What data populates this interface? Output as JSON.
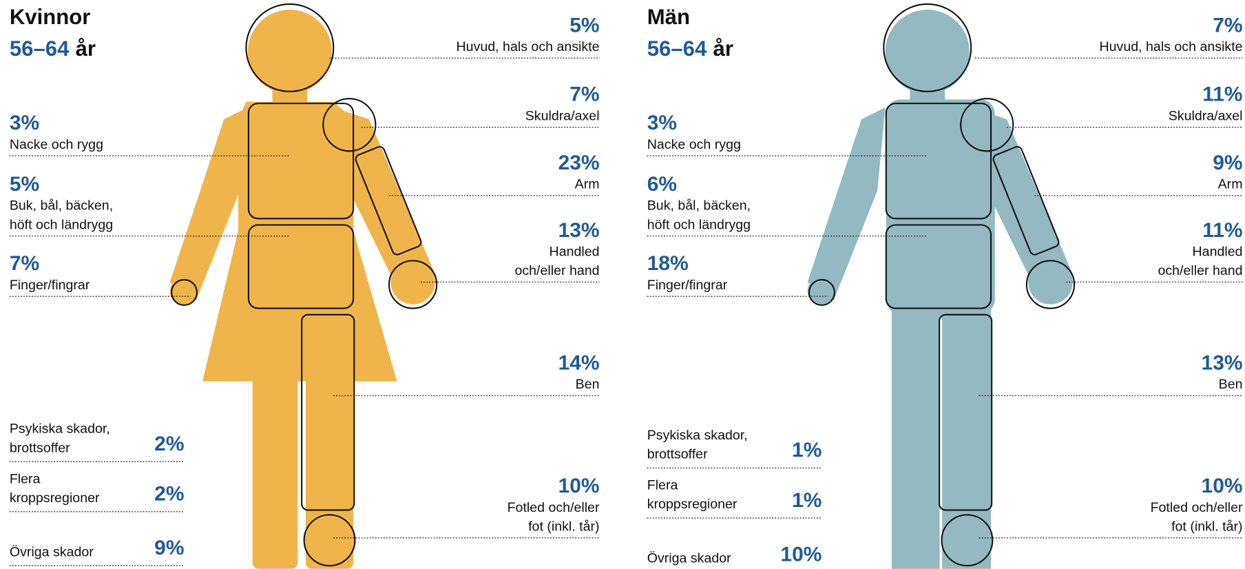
{
  "panels": [
    {
      "title": "Kvinnor",
      "age": "56–64",
      "age_unit": "år",
      "color": "#f0b54a",
      "right": [
        {
          "pct": "5%",
          "lines": [
            "Huvud, hals och ansikte"
          ]
        },
        {
          "pct": "7%",
          "lines": [
            "Skuldra/axel"
          ]
        },
        {
          "pct": "23%",
          "lines": [
            "Arm"
          ]
        },
        {
          "pct": "13%",
          "lines": [
            "Handled",
            "och/eller hand"
          ]
        },
        {
          "pct": "14%",
          "lines": [
            "Ben"
          ]
        },
        {
          "pct": "10%",
          "lines": [
            "Fotled och/eller",
            "fot (inkl. tår)"
          ]
        }
      ],
      "left": [
        {
          "pct": "3%",
          "lines": [
            "Nacke och rygg"
          ]
        },
        {
          "pct": "5%",
          "lines": [
            "Buk, bål, bäcken,",
            "höft och ländrygg"
          ]
        },
        {
          "pct": "7%",
          "lines": [
            "Finger/fingrar"
          ]
        }
      ],
      "bottom": [
        {
          "lines": [
            "Psykiska skador,",
            "brottsoffer"
          ],
          "pct": "2%"
        },
        {
          "lines": [
            "Flera",
            "kroppsregioner"
          ],
          "pct": "2%"
        },
        {
          "lines": [
            "Övriga skador"
          ],
          "pct": "9%"
        }
      ]
    },
    {
      "title": "Män",
      "age": "56–64",
      "age_unit": "år",
      "color": "#93b9c1",
      "right": [
        {
          "pct": "7%",
          "lines": [
            "Huvud, hals och ansikte"
          ]
        },
        {
          "pct": "11%",
          "lines": [
            "Skuldra/axel"
          ]
        },
        {
          "pct": "9%",
          "lines": [
            "Arm"
          ]
        },
        {
          "pct": "11%",
          "lines": [
            "Handled",
            "och/eller hand"
          ]
        },
        {
          "pct": "13%",
          "lines": [
            "Ben"
          ]
        },
        {
          "pct": "10%",
          "lines": [
            "Fotled och/eller",
            "fot (inkl. tår)"
          ]
        }
      ],
      "left": [
        {
          "pct": "3%",
          "lines": [
            "Nacke och rygg"
          ]
        },
        {
          "pct": "6%",
          "lines": [
            "Buk, bål, bäcken,",
            "höft och ländrygg"
          ]
        },
        {
          "pct": "18%",
          "lines": [
            "Finger/fingrar"
          ]
        }
      ],
      "bottom": [
        {
          "lines": [
            "Psykiska skador,",
            "brottsoffer"
          ],
          "pct": "1%"
        },
        {
          "lines": [
            "Flera",
            "kroppsregioner"
          ],
          "pct": "1%"
        },
        {
          "lines": [
            "Övriga skador"
          ],
          "pct": "10%"
        }
      ]
    }
  ]
}
